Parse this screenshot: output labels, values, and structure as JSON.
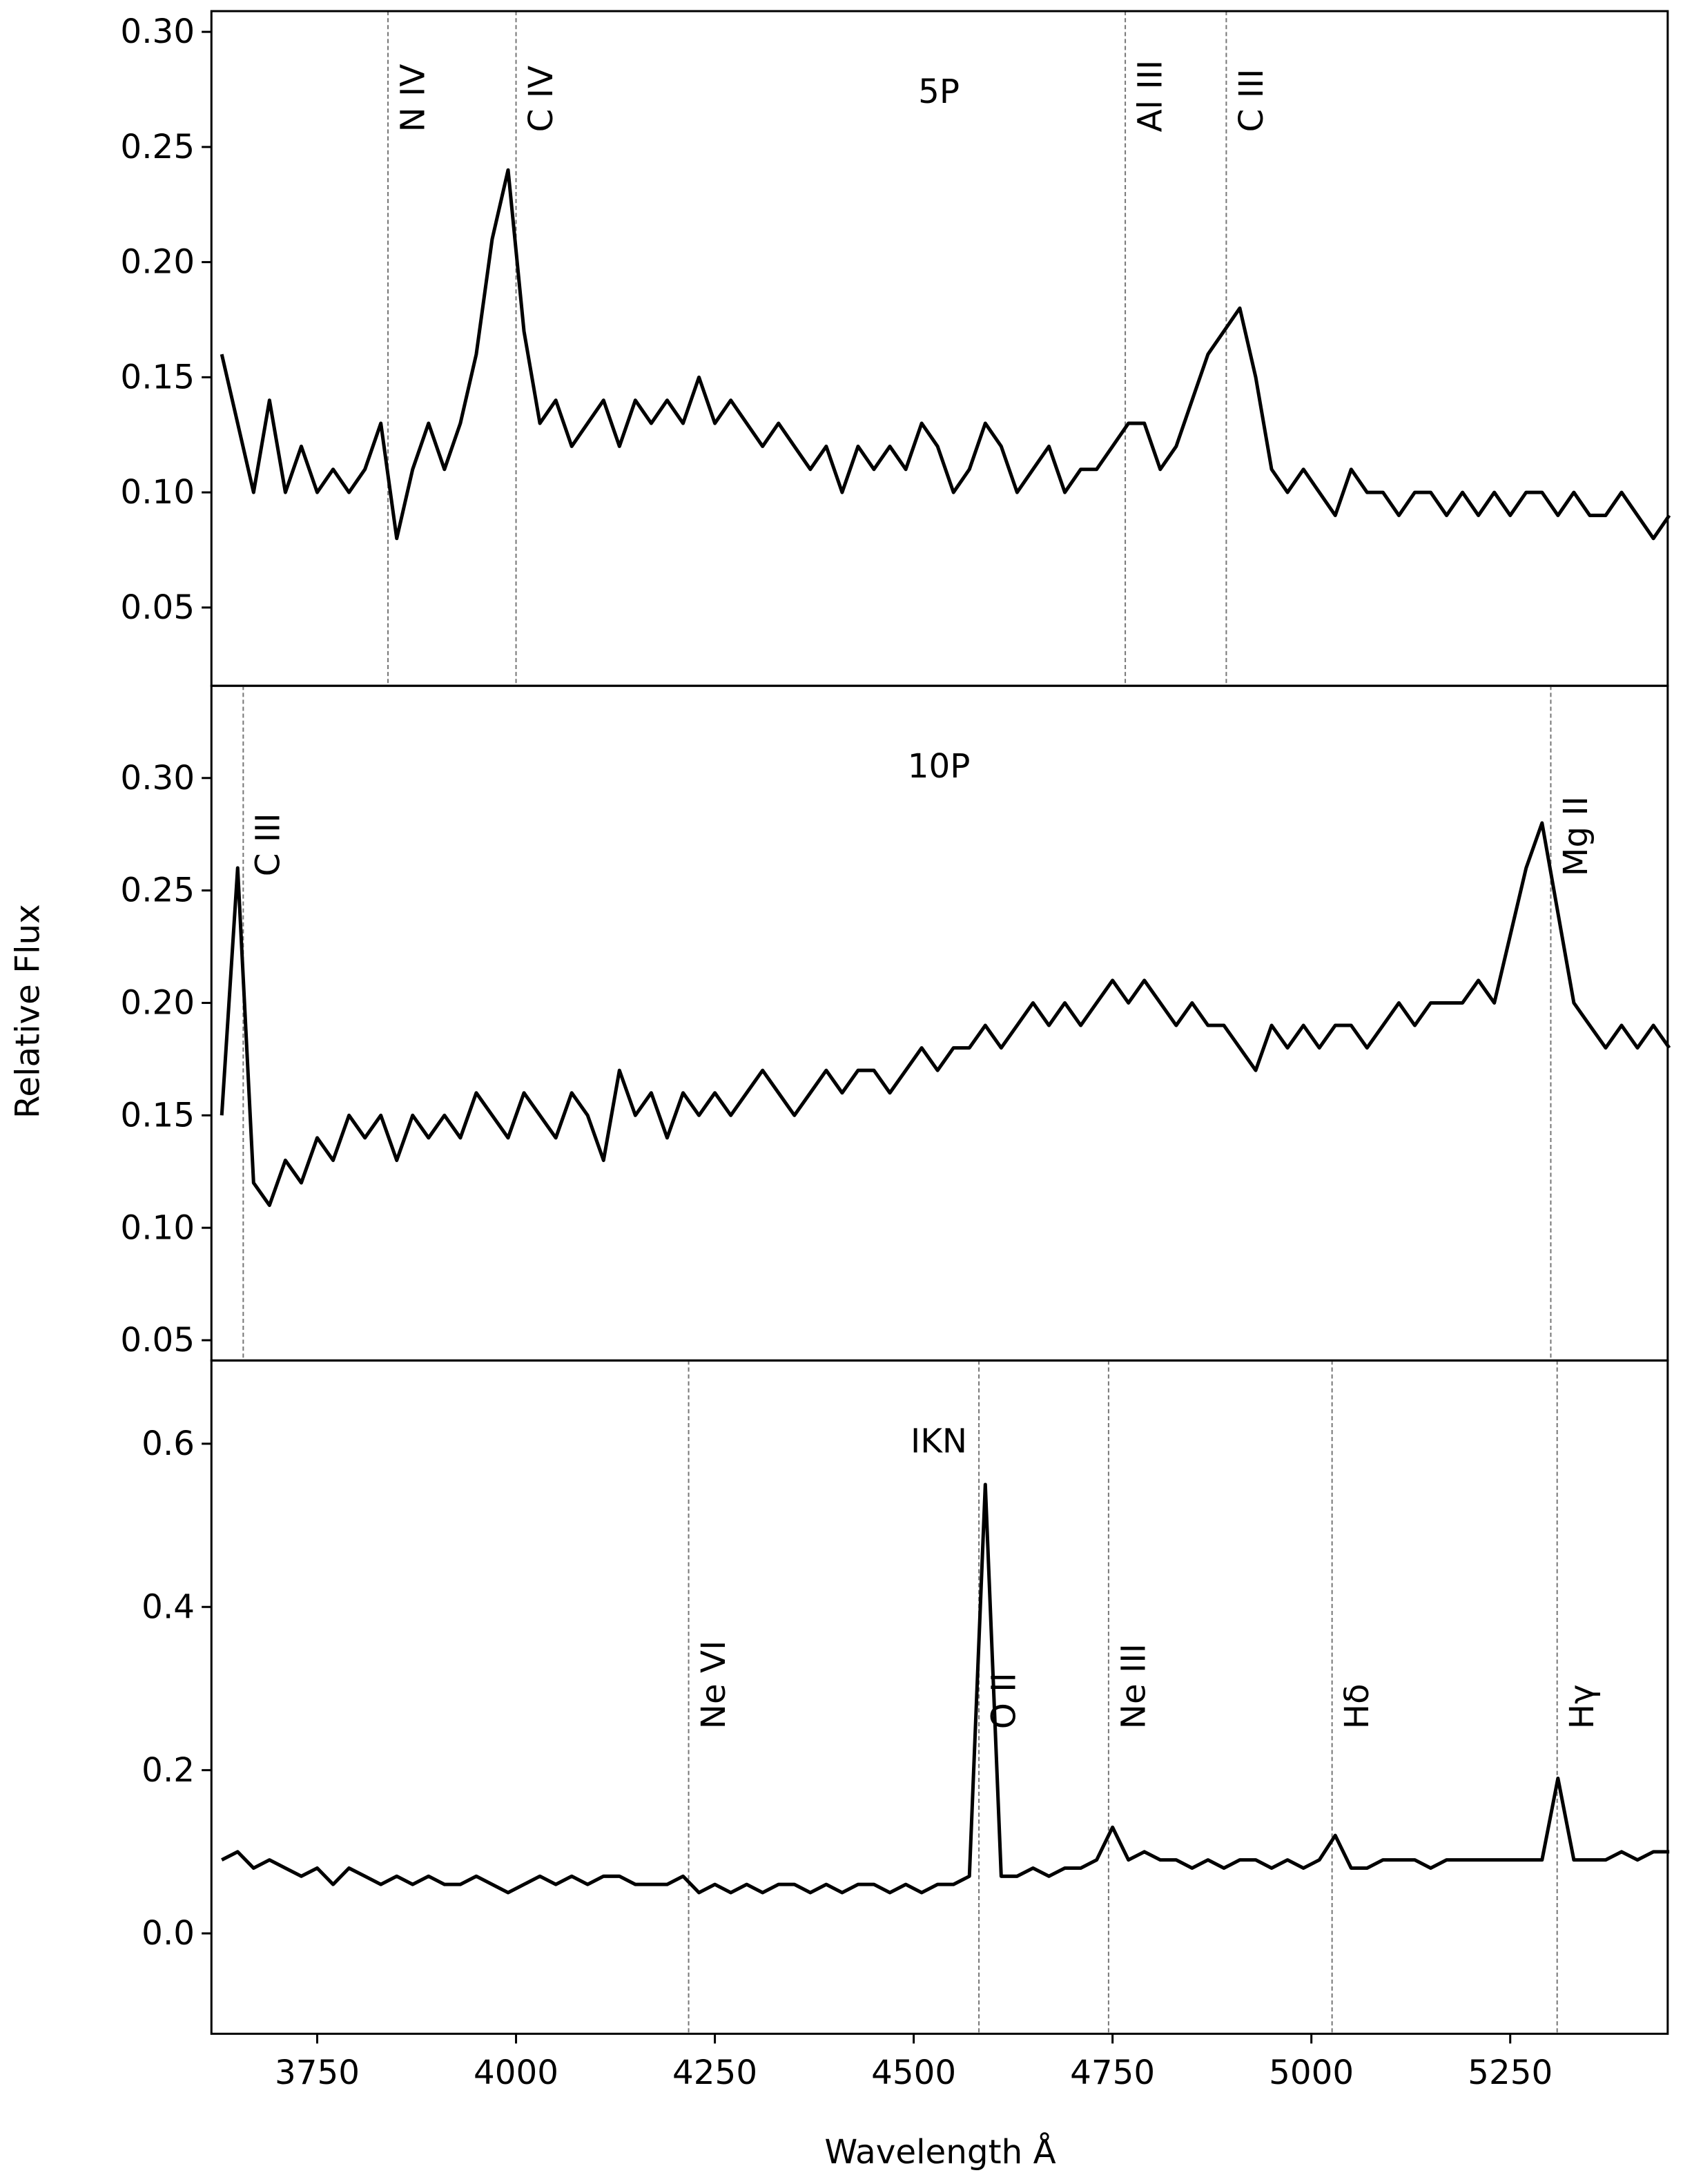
{
  "chart_data": [
    {
      "type": "line",
      "label": "5P",
      "color": "#000000",
      "xlim": [
        3617,
        5448
      ],
      "ylim": [
        0.016,
        0.309
      ],
      "yticks": [
        {
          "value": 0.05,
          "label": "0.05"
        },
        {
          "value": 0.1,
          "label": "0.10"
        },
        {
          "value": 0.15,
          "label": "0.15"
        },
        {
          "value": 0.2,
          "label": "0.20"
        },
        {
          "value": 0.25,
          "label": "0.25"
        },
        {
          "value": 0.3,
          "label": "0.30"
        }
      ],
      "lines": [
        {
          "x": 3839,
          "label": "N IV"
        },
        {
          "x": 4000,
          "label": "C IV"
        },
        {
          "x": 4766,
          "label": "Al III"
        },
        {
          "x": 4893,
          "label": "C III"
        }
      ],
      "x": [
        3630,
        3650,
        3670,
        3690,
        3710,
        3730,
        3750,
        3770,
        3790,
        3810,
        3830,
        3850,
        3870,
        3890,
        3910,
        3930,
        3950,
        3970,
        3990,
        4010,
        4030,
        4050,
        4070,
        4090,
        4110,
        4130,
        4150,
        4170,
        4190,
        4210,
        4230,
        4250,
        4270,
        4290,
        4310,
        4330,
        4350,
        4370,
        4390,
        4410,
        4430,
        4450,
        4470,
        4490,
        4510,
        4530,
        4550,
        4570,
        4590,
        4610,
        4630,
        4650,
        4670,
        4690,
        4710,
        4730,
        4750,
        4770,
        4790,
        4810,
        4830,
        4850,
        4870,
        4890,
        4910,
        4930,
        4950,
        4970,
        4990,
        5010,
        5030,
        5050,
        5070,
        5090,
        5110,
        5130,
        5150,
        5170,
        5190,
        5210,
        5230,
        5250,
        5270,
        5290,
        5310,
        5330,
        5350,
        5370,
        5390,
        5410,
        5430,
        5450
      ],
      "values": [
        0.16,
        0.13,
        0.1,
        0.14,
        0.1,
        0.12,
        0.1,
        0.11,
        0.1,
        0.11,
        0.13,
        0.08,
        0.11,
        0.13,
        0.11,
        0.13,
        0.16,
        0.21,
        0.24,
        0.17,
        0.13,
        0.14,
        0.12,
        0.13,
        0.14,
        0.12,
        0.14,
        0.13,
        0.14,
        0.13,
        0.15,
        0.13,
        0.14,
        0.13,
        0.12,
        0.13,
        0.12,
        0.11,
        0.12,
        0.1,
        0.12,
        0.11,
        0.12,
        0.11,
        0.13,
        0.12,
        0.1,
        0.11,
        0.13,
        0.12,
        0.1,
        0.11,
        0.12,
        0.1,
        0.11,
        0.11,
        0.12,
        0.13,
        0.13,
        0.11,
        0.12,
        0.14,
        0.16,
        0.17,
        0.18,
        0.15,
        0.11,
        0.1,
        0.11,
        0.1,
        0.09,
        0.11,
        0.1,
        0.1,
        0.09,
        0.1,
        0.1,
        0.09,
        0.1,
        0.09,
        0.1,
        0.09,
        0.1,
        0.1,
        0.09,
        0.1,
        0.09,
        0.09,
        0.1,
        0.09,
        0.08,
        0.09
      ]
    },
    {
      "type": "line",
      "label": "10P",
      "color": "#000000",
      "ylabel": "Relative Flux",
      "xlim": [
        3617,
        5448
      ],
      "ylim": [
        0.041,
        0.341
      ],
      "yticks": [
        {
          "value": 0.05,
          "label": "0.05"
        },
        {
          "value": 0.1,
          "label": "0.10"
        },
        {
          "value": 0.15,
          "label": "0.15"
        },
        {
          "value": 0.2,
          "label": "0.20"
        },
        {
          "value": 0.25,
          "label": "0.25"
        },
        {
          "value": 0.3,
          "label": "0.30"
        }
      ],
      "lines": [
        {
          "x": 3657,
          "label": "C III"
        },
        {
          "x": 5301,
          "label": "Mg II"
        }
      ],
      "x": [
        3630,
        3650,
        3670,
        3690,
        3710,
        3730,
        3750,
        3770,
        3790,
        3810,
        3830,
        3850,
        3870,
        3890,
        3910,
        3930,
        3950,
        3970,
        3990,
        4010,
        4030,
        4050,
        4070,
        4090,
        4110,
        4130,
        4150,
        4170,
        4190,
        4210,
        4230,
        4250,
        4270,
        4290,
        4310,
        4330,
        4350,
        4370,
        4390,
        4410,
        4430,
        4450,
        4470,
        4490,
        4510,
        4530,
        4550,
        4570,
        4590,
        4610,
        4630,
        4650,
        4670,
        4690,
        4710,
        4730,
        4750,
        4770,
        4790,
        4810,
        4830,
        4850,
        4870,
        4890,
        4910,
        4930,
        4950,
        4970,
        4990,
        5010,
        5030,
        5050,
        5070,
        5090,
        5110,
        5130,
        5150,
        5170,
        5190,
        5210,
        5230,
        5250,
        5270,
        5290,
        5310,
        5330,
        5350,
        5370,
        5390,
        5410,
        5430,
        5450
      ],
      "values": [
        0.15,
        0.26,
        0.12,
        0.11,
        0.13,
        0.12,
        0.14,
        0.13,
        0.15,
        0.14,
        0.15,
        0.13,
        0.15,
        0.14,
        0.15,
        0.14,
        0.16,
        0.15,
        0.14,
        0.16,
        0.15,
        0.14,
        0.16,
        0.15,
        0.13,
        0.17,
        0.15,
        0.16,
        0.14,
        0.16,
        0.15,
        0.16,
        0.15,
        0.16,
        0.17,
        0.16,
        0.15,
        0.16,
        0.17,
        0.16,
        0.17,
        0.17,
        0.16,
        0.17,
        0.18,
        0.17,
        0.18,
        0.18,
        0.19,
        0.18,
        0.19,
        0.2,
        0.19,
        0.2,
        0.19,
        0.2,
        0.21,
        0.2,
        0.21,
        0.2,
        0.19,
        0.2,
        0.19,
        0.19,
        0.18,
        0.17,
        0.19,
        0.18,
        0.19,
        0.18,
        0.19,
        0.19,
        0.18,
        0.19,
        0.2,
        0.19,
        0.2,
        0.2,
        0.2,
        0.21,
        0.2,
        0.23,
        0.26,
        0.28,
        0.24,
        0.2,
        0.19,
        0.18,
        0.19,
        0.18,
        0.19,
        0.18
      ]
    },
    {
      "type": "line",
      "label": "IKN",
      "color": "#000000",
      "xlabel": "Wavelength Å",
      "xlim": [
        3617,
        5448
      ],
      "ylim": [
        -0.123,
        0.702
      ],
      "xticks": [
        3750,
        4000,
        4250,
        4500,
        4750,
        5000,
        5250
      ],
      "yticks": [
        {
          "value": 0,
          "label": "0.0"
        },
        0.2,
        0.4,
        0.6
      ],
      "lines": [
        {
          "x": 4217,
          "label": "Ne VI"
        },
        {
          "x": 4582,
          "label": "O II"
        },
        {
          "x": 4745,
          "label": "Ne III"
        },
        {
          "x": 5026,
          "label": "Hδ"
        },
        {
          "x": 5309,
          "label": "Hγ"
        }
      ],
      "x": [
        3630,
        3650,
        3670,
        3690,
        3710,
        3730,
        3750,
        3770,
        3790,
        3810,
        3830,
        3850,
        3870,
        3890,
        3910,
        3930,
        3950,
        3970,
        3990,
        4010,
        4030,
        4050,
        4070,
        4090,
        4110,
        4130,
        4150,
        4170,
        4190,
        4210,
        4230,
        4250,
        4270,
        4290,
        4310,
        4330,
        4350,
        4370,
        4390,
        4410,
        4430,
        4450,
        4470,
        4490,
        4510,
        4530,
        4550,
        4570,
        4590,
        4610,
        4630,
        4650,
        4670,
        4690,
        4710,
        4730,
        4750,
        4770,
        4790,
        4810,
        4830,
        4850,
        4870,
        4890,
        4910,
        4930,
        4950,
        4970,
        4990,
        5010,
        5030,
        5050,
        5070,
        5090,
        5110,
        5130,
        5150,
        5170,
        5190,
        5210,
        5230,
        5250,
        5270,
        5290,
        5310,
        5330,
        5350,
        5370,
        5390,
        5410,
        5430,
        5450
      ],
      "values": [
        0.09,
        0.1,
        0.08,
        0.09,
        0.08,
        0.07,
        0.08,
        0.06,
        0.08,
        0.07,
        0.06,
        0.07,
        0.06,
        0.07,
        0.06,
        0.06,
        0.07,
        0.06,
        0.05,
        0.06,
        0.07,
        0.06,
        0.07,
        0.06,
        0.07,
        0.07,
        0.06,
        0.06,
        0.06,
        0.07,
        0.05,
        0.06,
        0.05,
        0.06,
        0.05,
        0.06,
        0.06,
        0.05,
        0.06,
        0.05,
        0.06,
        0.06,
        0.05,
        0.06,
        0.05,
        0.06,
        0.06,
        0.07,
        0.55,
        0.07,
        0.07,
        0.08,
        0.07,
        0.08,
        0.08,
        0.09,
        0.13,
        0.09,
        0.1,
        0.09,
        0.09,
        0.08,
        0.09,
        0.08,
        0.09,
        0.09,
        0.08,
        0.09,
        0.08,
        0.09,
        0.12,
        0.08,
        0.08,
        0.09,
        0.09,
        0.09,
        0.08,
        0.09,
        0.09,
        0.09,
        0.09,
        0.09,
        0.09,
        0.09,
        0.19,
        0.09,
        0.09,
        0.09,
        0.1,
        0.09,
        0.1,
        0.1
      ]
    }
  ]
}
